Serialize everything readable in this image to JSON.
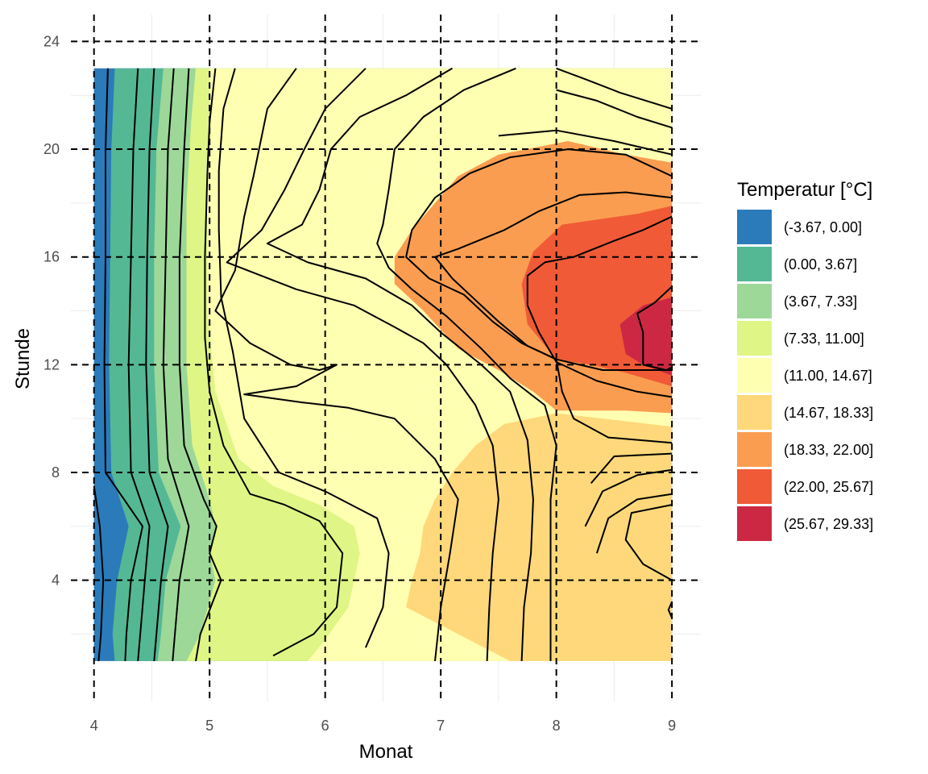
{
  "chart_data": {
    "type": "contour",
    "xlabel": "Monat",
    "ylabel": "Stunde",
    "xlim": [
      3.8,
      9.25
    ],
    "ylim": [
      -0.5,
      25
    ],
    "x_ticks": [
      4,
      5,
      6,
      7,
      8,
      9
    ],
    "y_ticks": [
      4,
      8,
      12,
      16,
      20,
      24
    ],
    "grid": "dashed-major",
    "legend": {
      "title": "Temperatur [°C]",
      "position": "right",
      "entries": [
        {
          "label": "(-3.67, 0.00]",
          "color": "#2b7bba"
        },
        {
          "label": "(0.00, 3.67]",
          "color": "#54b895"
        },
        {
          "label": "(3.67, 7.33]",
          "color": "#9dd898"
        },
        {
          "label": "(7.33, 11.00]",
          "color": "#dff585"
        },
        {
          "label": "(11.00, 14.67]",
          "color": "#ffffb2"
        },
        {
          "label": "(14.67, 18.33]",
          "color": "#fed87a"
        },
        {
          "label": "(18.33, 22.00]",
          "color": "#fa9d50"
        },
        {
          "label": "(22.00, 25.67]",
          "color": "#f05a36"
        },
        {
          "label": "(25.67, 29.33]",
          "color": "#cc2843"
        }
      ]
    },
    "data_domain": {
      "x": [
        4,
        9
      ],
      "y": [
        1,
        23
      ]
    },
    "bands": [
      {
        "level": 0,
        "points": [
          [
            4,
            1
          ],
          [
            4.3,
            1
          ],
          [
            5,
            1
          ],
          [
            6,
            1
          ],
          [
            7,
            1
          ],
          [
            8,
            1
          ],
          [
            9,
            1
          ],
          [
            9,
            23
          ],
          [
            4,
            23
          ]
        ]
      },
      {
        "level": 1,
        "points": [
          [
            4.18,
            1
          ],
          [
            9,
            1
          ],
          [
            9,
            23
          ],
          [
            4.18,
            23
          ],
          [
            4.15,
            20
          ],
          [
            4.14,
            16
          ],
          [
            4.13,
            12
          ],
          [
            4.15,
            8
          ],
          [
            4.3,
            6
          ],
          [
            4.2,
            4
          ],
          [
            4.16,
            2
          ]
        ]
      },
      {
        "level": 2,
        "points": [
          [
            4.55,
            1
          ],
          [
            9,
            1
          ],
          [
            9,
            23
          ],
          [
            4.6,
            23
          ],
          [
            4.54,
            20
          ],
          [
            4.52,
            16
          ],
          [
            4.52,
            12
          ],
          [
            4.56,
            8
          ],
          [
            4.75,
            6
          ],
          [
            4.62,
            4
          ],
          [
            4.58,
            2
          ]
        ]
      },
      {
        "level": 3,
        "points": [
          [
            4.8,
            1
          ],
          [
            9,
            1
          ],
          [
            9,
            23
          ],
          [
            4.88,
            23
          ],
          [
            4.84,
            21
          ],
          [
            4.8,
            18
          ],
          [
            4.8,
            12
          ],
          [
            4.85,
            9
          ],
          [
            5.0,
            7
          ],
          [
            5.05,
            6
          ],
          [
            5,
            5
          ],
          [
            5.05,
            4
          ],
          [
            4.92,
            2
          ]
        ]
      },
      {
        "level": 4,
        "points": [
          [
            5.85,
            1
          ],
          [
            9,
            1
          ],
          [
            9,
            23
          ],
          [
            5,
            23
          ],
          [
            5,
            21
          ],
          [
            4.98,
            18
          ],
          [
            4.98,
            14
          ],
          [
            5.05,
            11
          ],
          [
            5.25,
            8.5
          ],
          [
            5.55,
            7.5
          ],
          [
            5.95,
            6.8
          ],
          [
            6.25,
            6
          ],
          [
            6.3,
            5
          ],
          [
            6.2,
            3
          ],
          [
            6.0,
            1.8
          ]
        ]
      },
      {
        "level": 5,
        "points": [
          [
            7.6,
            1
          ],
          [
            9,
            1
          ],
          [
            9,
            9.7
          ],
          [
            8.6,
            9.9
          ],
          [
            8.0,
            10.2
          ],
          [
            7.55,
            9.8
          ],
          [
            7.3,
            9
          ],
          [
            7.1,
            8
          ],
          [
            6.95,
            7
          ],
          [
            6.85,
            6
          ],
          [
            6.82,
            5
          ],
          [
            6.75,
            4
          ],
          [
            6.7,
            3
          ]
        ]
      },
      {
        "level": 6,
        "points": [
          [
            8.1,
            20.3
          ],
          [
            8.6,
            19.8
          ],
          [
            9,
            19.5
          ],
          [
            9,
            10.2
          ],
          [
            8.6,
            10.3
          ],
          [
            8.0,
            10.3
          ],
          [
            7.8,
            11
          ],
          [
            7.5,
            11.8
          ],
          [
            7.15,
            12.6
          ],
          [
            6.85,
            14
          ],
          [
            6.6,
            15
          ],
          [
            6.6,
            16
          ],
          [
            6.75,
            17
          ],
          [
            6.95,
            18
          ],
          [
            7.15,
            19
          ],
          [
            7.5,
            19.8
          ]
        ]
      },
      {
        "level": 7,
        "points": [
          [
            8.7,
            17.6
          ],
          [
            9,
            17.9
          ],
          [
            9,
            11.2
          ],
          [
            8.6,
            11.7
          ],
          [
            8.3,
            12
          ],
          [
            8.0,
            12.2
          ],
          [
            7.75,
            13.5
          ],
          [
            7.7,
            15
          ],
          [
            7.8,
            16.2
          ],
          [
            8.05,
            17.2
          ]
        ]
      },
      {
        "level": 8,
        "points": [
          [
            9,
            14.5
          ],
          [
            9,
            11.6
          ],
          [
            8.75,
            12
          ],
          [
            8.6,
            12.4
          ],
          [
            8.55,
            13.5
          ],
          [
            8.75,
            14.2
          ]
        ]
      }
    ],
    "contours": [
      [
        [
          4,
          7.5
        ],
        [
          4.05,
          6
        ],
        [
          4.08,
          4
        ],
        [
          4.06,
          2
        ],
        [
          4.04,
          1
        ]
      ],
      [
        [
          4.12,
          23
        ],
        [
          4.1,
          20
        ],
        [
          4.1,
          16
        ],
        [
          4.09,
          12
        ],
        [
          4.1,
          8
        ],
        [
          4.42,
          6
        ],
        [
          4.32,
          4
        ],
        [
          4.28,
          2
        ],
        [
          4.27,
          1
        ]
      ],
      [
        [
          4.38,
          23
        ],
        [
          4.34,
          20
        ],
        [
          4.32,
          16
        ],
        [
          4.3,
          12
        ],
        [
          4.32,
          8
        ],
        [
          4.48,
          6
        ],
        [
          4.44,
          4
        ],
        [
          4.4,
          2
        ],
        [
          4.38,
          1
        ]
      ],
      [
        [
          4.52,
          23
        ],
        [
          4.48,
          20
        ],
        [
          4.46,
          16
        ],
        [
          4.45,
          12
        ],
        [
          4.48,
          8
        ],
        [
          4.64,
          6
        ],
        [
          4.58,
          4
        ],
        [
          4.54,
          2
        ],
        [
          4.52,
          1
        ]
      ],
      [
        [
          4.69,
          23
        ],
        [
          4.64,
          20
        ],
        [
          4.62,
          16
        ],
        [
          4.6,
          12
        ],
        [
          4.64,
          8.5
        ],
        [
          4.82,
          6
        ],
        [
          4.74,
          4
        ],
        [
          4.7,
          2
        ],
        [
          4.68,
          1
        ]
      ],
      [
        [
          4.82,
          23
        ],
        [
          4.78,
          20
        ],
        [
          4.74,
          16
        ],
        [
          4.74,
          12
        ],
        [
          4.78,
          9
        ],
        [
          4.95,
          7
        ],
        [
          5.06,
          6
        ],
        [
          5.0,
          5
        ],
        [
          5.1,
          4
        ],
        [
          4.92,
          2
        ],
        [
          4.88,
          1
        ]
      ],
      [
        [
          5.05,
          23
        ],
        [
          5.0,
          21
        ],
        [
          4.98,
          19
        ],
        [
          4.96,
          16
        ],
        [
          4.96,
          13
        ],
        [
          5.0,
          11
        ],
        [
          5.12,
          9
        ],
        [
          5.35,
          7.2
        ],
        [
          5.65,
          6.8
        ],
        [
          5.95,
          6.2
        ],
        [
          6.15,
          5
        ],
        [
          6.1,
          3
        ],
        [
          5.9,
          2
        ],
        [
          5.55,
          1.2
        ]
      ],
      [
        [
          5.22,
          23
        ],
        [
          5.12,
          21.5
        ],
        [
          5.08,
          19.2
        ],
        [
          5.08,
          17
        ],
        [
          5.1,
          14.5
        ],
        [
          5.2,
          12.5
        ],
        [
          5.3,
          10
        ],
        [
          5.6,
          8
        ],
        [
          6.0,
          7.3
        ],
        [
          6.45,
          6.3
        ],
        [
          6.55,
          5
        ],
        [
          6.5,
          3
        ],
        [
          6.35,
          1.5
        ]
      ],
      [
        [
          5.75,
          23
        ],
        [
          5.5,
          21.5
        ],
        [
          5.38,
          19
        ],
        [
          5.3,
          17.5
        ],
        [
          5.22,
          15.5
        ],
        [
          5.05,
          14
        ],
        [
          5.35,
          12.8
        ],
        [
          5.7,
          12
        ],
        [
          5.95,
          11.8
        ],
        [
          6.1,
          12
        ],
        [
          5.75,
          11.2
        ],
        [
          5.3,
          10.9
        ],
        [
          5.8,
          10.6
        ],
        [
          6.2,
          10.4
        ],
        [
          6.6,
          10
        ],
        [
          6.95,
          8.5
        ],
        [
          7.15,
          7
        ],
        [
          7.08,
          5
        ],
        [
          7.0,
          3
        ],
        [
          6.95,
          1
        ]
      ],
      [
        [
          6.35,
          23
        ],
        [
          6.0,
          21.5
        ],
        [
          5.82,
          20
        ],
        [
          5.65,
          18.5
        ],
        [
          5.45,
          17
        ],
        [
          5.15,
          15.8
        ],
        [
          5.75,
          14.8
        ],
        [
          6.25,
          14.2
        ],
        [
          6.6,
          13.4
        ],
        [
          6.85,
          12.8
        ],
        [
          7.05,
          12
        ],
        [
          7.3,
          10.5
        ],
        [
          7.45,
          9
        ],
        [
          7.5,
          7
        ],
        [
          7.45,
          5
        ],
        [
          7.42,
          3
        ],
        [
          7.4,
          1
        ]
      ],
      [
        [
          7.1,
          23
        ],
        [
          6.7,
          22
        ],
        [
          6.3,
          21.2
        ],
        [
          6.05,
          20
        ],
        [
          5.95,
          18.5
        ],
        [
          5.8,
          17.2
        ],
        [
          5.5,
          16.5
        ],
        [
          5.85,
          15.8
        ],
        [
          6.35,
          15.2
        ],
        [
          6.75,
          14.2
        ],
        [
          7.0,
          13.2
        ],
        [
          7.35,
          12
        ],
        [
          7.6,
          11
        ],
        [
          7.75,
          9.2
        ],
        [
          7.8,
          7
        ],
        [
          7.78,
          5
        ],
        [
          7.72,
          3
        ],
        [
          7.7,
          1
        ]
      ],
      [
        [
          7.65,
          23
        ],
        [
          7.2,
          22.2
        ],
        [
          6.85,
          21.2
        ],
        [
          6.6,
          20
        ],
        [
          6.55,
          18.5
        ],
        [
          6.5,
          17.2
        ],
        [
          6.45,
          16.5
        ],
        [
          6.55,
          15.6
        ],
        [
          6.75,
          14.8
        ],
        [
          7.05,
          13.8
        ],
        [
          7.35,
          12.6
        ],
        [
          7.6,
          11.5
        ],
        [
          7.9,
          10.5
        ],
        [
          8.0,
          9
        ],
        [
          7.95,
          7
        ],
        [
          7.95,
          5
        ],
        [
          7.95,
          3
        ],
        [
          7.95,
          1
        ]
      ],
      [
        [
          8.0,
          23
        ],
        [
          8.25,
          22.6
        ],
        [
          8.55,
          22.1
        ],
        [
          9,
          21.5
        ]
      ],
      [
        [
          8.0,
          22.2
        ],
        [
          8.35,
          21.8
        ],
        [
          8.7,
          21.2
        ],
        [
          9,
          20.8
        ]
      ],
      [
        [
          7.5,
          20.5
        ],
        [
          8.0,
          20.7
        ],
        [
          8.5,
          20.3
        ],
        [
          9,
          19.8
        ]
      ],
      [
        [
          9,
          19
        ],
        [
          8.6,
          19.8
        ],
        [
          8.1,
          20
        ],
        [
          7.6,
          19.7
        ],
        [
          7.25,
          19.1
        ],
        [
          6.95,
          18.2
        ],
        [
          6.75,
          17
        ],
        [
          6.7,
          16
        ],
        [
          6.9,
          15.2
        ],
        [
          7.2,
          14.6
        ],
        [
          7.45,
          13.6
        ],
        [
          7.7,
          12.8
        ],
        [
          8.0,
          12.2
        ],
        [
          8.05,
          11
        ],
        [
          8.15,
          10
        ],
        [
          8.45,
          9.3
        ],
        [
          9,
          9.1
        ]
      ],
      [
        [
          9,
          18.2
        ],
        [
          8.6,
          18.4
        ],
        [
          8.2,
          18.3
        ],
        [
          7.85,
          17.7
        ],
        [
          7.55,
          17
        ],
        [
          7.15,
          16.3
        ],
        [
          6.95,
          16
        ],
        [
          7.1,
          15.2
        ],
        [
          7.3,
          14.4
        ],
        [
          7.5,
          13.6
        ],
        [
          7.75,
          12.7
        ],
        [
          8.0,
          12.2
        ],
        [
          8.4,
          11.8
        ],
        [
          9,
          11.8
        ]
      ],
      [
        [
          9,
          17.5
        ],
        [
          8.75,
          17
        ],
        [
          8.5,
          16.6
        ],
        [
          8.15,
          16
        ],
        [
          7.9,
          15.8
        ],
        [
          7.75,
          15.3
        ],
        [
          7.75,
          14.2
        ],
        [
          7.85,
          13.2
        ],
        [
          8.0,
          12.1
        ],
        [
          8.35,
          11.4
        ],
        [
          8.7,
          11.0
        ],
        [
          9,
          10.8
        ]
      ],
      [
        [
          8.3,
          7.6
        ],
        [
          8.5,
          8.6
        ],
        [
          9,
          8.7
        ]
      ],
      [
        [
          8.25,
          6
        ],
        [
          8.4,
          7.3
        ],
        [
          8.7,
          7.9
        ],
        [
          9,
          8.1
        ]
      ],
      [
        [
          8.35,
          5
        ],
        [
          8.45,
          6.3
        ],
        [
          8.7,
          7
        ],
        [
          9,
          7.2
        ]
      ],
      [
        [
          9,
          4
        ],
        [
          8.75,
          4.6
        ],
        [
          8.6,
          5.5
        ],
        [
          8.65,
          6.5
        ],
        [
          9,
          6.8
        ]
      ],
      [
        [
          9,
          3.2
        ],
        [
          8.97,
          2.9
        ],
        [
          9,
          2.6
        ]
      ],
      [
        [
          9,
          14.9
        ],
        [
          8.85,
          14.3
        ],
        [
          8.7,
          13.9
        ],
        [
          8.75,
          13.2
        ],
        [
          8.75,
          12
        ],
        [
          8.95,
          11.8
        ],
        [
          9,
          11.9
        ]
      ]
    ]
  }
}
